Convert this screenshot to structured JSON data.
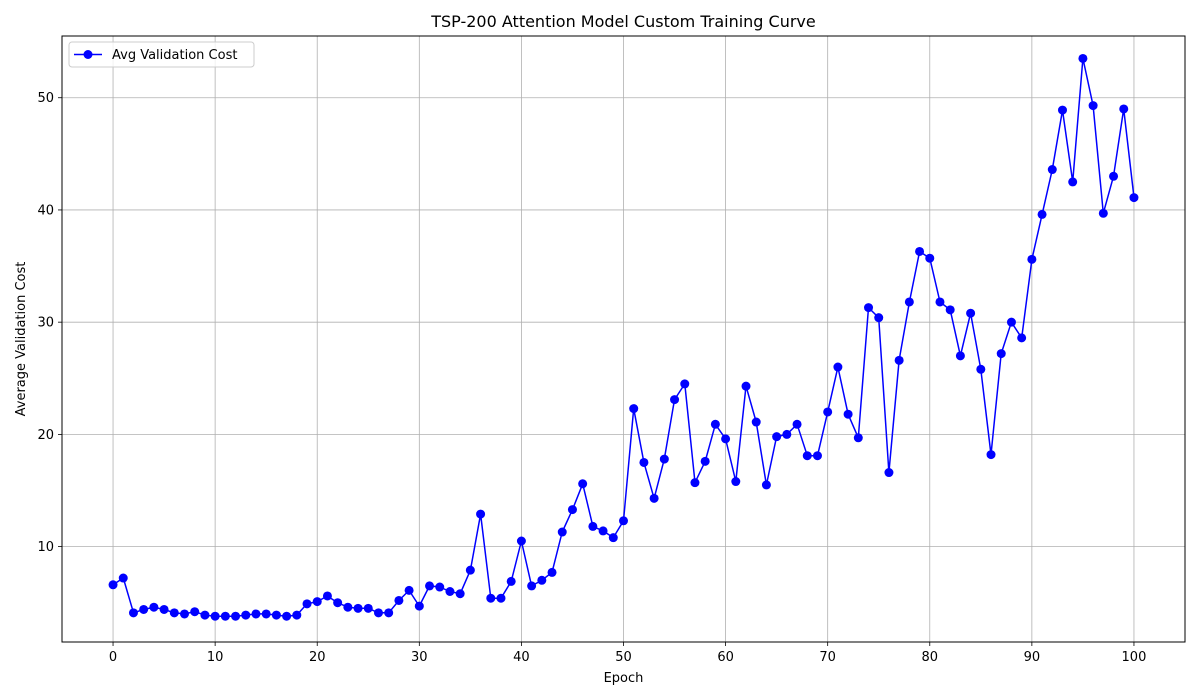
{
  "chart_data": {
    "type": "line",
    "title": "TSP-200 Attention Model Custom Training Curve",
    "xlabel": "Epoch",
    "ylabel": "Average Validation Cost",
    "xlim": [
      -5,
      105
    ],
    "ylim": [
      1.5,
      55.5
    ],
    "x_ticks": [
      0,
      10,
      20,
      30,
      40,
      50,
      60,
      70,
      80,
      90,
      100
    ],
    "y_ticks": [
      10,
      20,
      30,
      40,
      50
    ],
    "grid": true,
    "legend_position": "top-left",
    "series": [
      {
        "name": "Avg Validation Cost",
        "color": "#0000ff",
        "marker": "circle",
        "x": [
          0,
          1,
          2,
          3,
          4,
          5,
          6,
          7,
          8,
          9,
          10,
          11,
          12,
          13,
          14,
          15,
          16,
          17,
          18,
          19,
          20,
          21,
          22,
          23,
          24,
          25,
          26,
          27,
          28,
          29,
          30,
          31,
          32,
          33,
          34,
          35,
          36,
          37,
          38,
          39,
          40,
          41,
          42,
          43,
          44,
          45,
          46,
          47,
          48,
          49,
          50,
          51,
          52,
          53,
          54,
          55,
          56,
          57,
          58,
          59,
          60,
          61,
          62,
          63,
          64,
          65,
          66,
          67,
          68,
          69,
          70,
          71,
          72,
          73,
          74,
          75,
          76,
          77,
          78,
          79,
          80,
          81,
          82,
          83,
          84,
          85,
          86,
          87,
          88,
          89,
          90,
          91,
          92,
          93,
          94,
          95,
          96,
          97,
          98,
          99,
          100
        ],
        "values": [
          6.6,
          7.2,
          4.1,
          4.4,
          4.6,
          4.4,
          4.1,
          4.0,
          4.2,
          3.9,
          3.8,
          3.8,
          3.8,
          3.9,
          4.0,
          4.0,
          3.9,
          3.8,
          3.9,
          4.9,
          5.1,
          5.6,
          5.0,
          4.6,
          4.5,
          4.5,
          4.1,
          4.1,
          5.2,
          6.1,
          4.7,
          6.5,
          6.4,
          6.0,
          5.8,
          7.9,
          12.9,
          5.4,
          5.4,
          6.9,
          10.5,
          6.5,
          7.0,
          7.7,
          11.3,
          13.3,
          15.6,
          11.8,
          11.4,
          10.8,
          12.3,
          22.3,
          17.5,
          14.3,
          17.8,
          23.1,
          24.5,
          15.7,
          17.6,
          20.9,
          19.6,
          15.8,
          24.3,
          21.1,
          15.5,
          19.8,
          20.0,
          20.9,
          18.1,
          18.1,
          22.0,
          26.0,
          21.8,
          19.7,
          31.3,
          30.4,
          16.6,
          26.6,
          31.8,
          36.3,
          35.7,
          31.8,
          31.1,
          27.0,
          30.8,
          25.8,
          18.2,
          27.2,
          30.0,
          28.6,
          35.6,
          39.6,
          43.6,
          48.9,
          42.5,
          53.5,
          49.3,
          39.7,
          43.0,
          49.0,
          41.1
        ]
      }
    ]
  }
}
